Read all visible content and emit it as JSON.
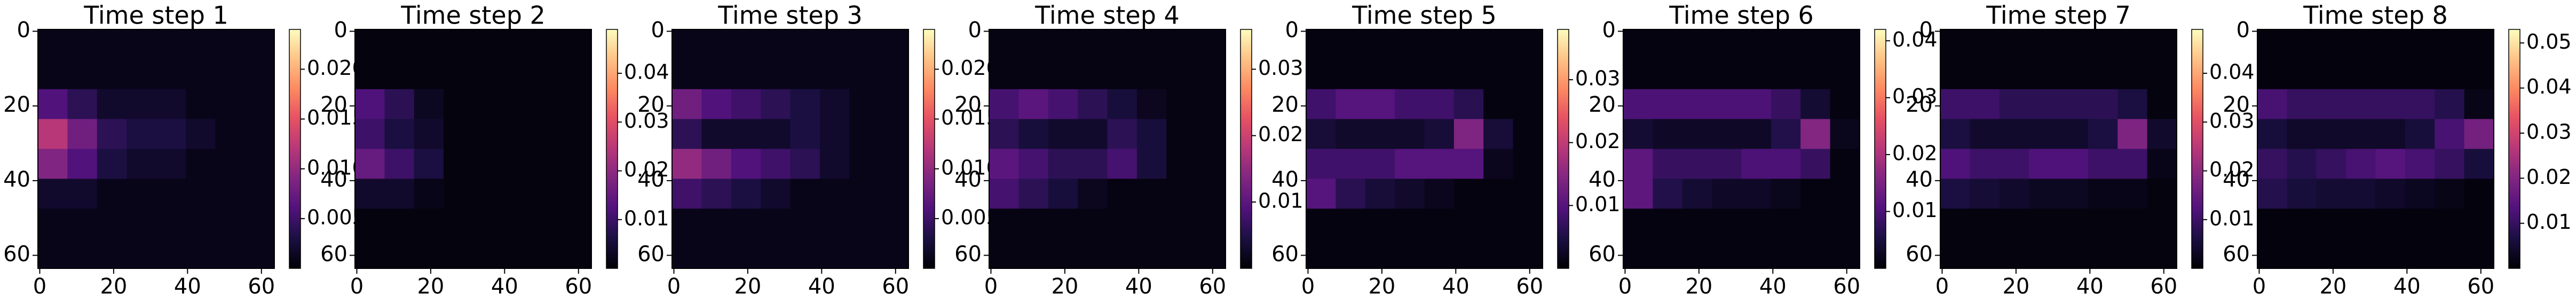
{
  "chart_data": [
    {
      "type": "heatmap",
      "title": "Time step 1",
      "colormap": "magma",
      "xlim": [
        -0.5,
        63.5
      ],
      "ylim": [
        -0.5,
        63.5
      ],
      "y_inverted": true,
      "xticks": [
        0,
        20,
        40,
        60
      ],
      "yticks": [
        0,
        20,
        40,
        60
      ],
      "clim": [
        0,
        0.024
      ],
      "cticks": [
        0.005,
        {
          "value": 0.01,
          "label": "0.010"
        },
        0.015,
        {
          "value": 0.02,
          "label": "0.020"
        }
      ],
      "values": [
        [
          0.001,
          0.001,
          0.001,
          0.001,
          0.001,
          0.001,
          0.001,
          0.001
        ],
        [
          0.001,
          0.001,
          0.001,
          0.001,
          0.001,
          0.001,
          0.001,
          0.001
        ],
        [
          0.006,
          0.004,
          0.002,
          0.002,
          0.002,
          0.001,
          0.001,
          0.001
        ],
        [
          0.012,
          0.008,
          0.004,
          0.003,
          0.003,
          0.002,
          0.001,
          0.001
        ],
        [
          0.009,
          0.006,
          0.003,
          0.002,
          0.002,
          0.001,
          0.001,
          0.001
        ],
        [
          0.002,
          0.002,
          0.001,
          0.001,
          0.001,
          0.001,
          0.001,
          0.001
        ],
        [
          0.001,
          0.001,
          0.001,
          0.001,
          0.001,
          0.001,
          0.001,
          0.001
        ],
        [
          0.001,
          0.001,
          0.001,
          0.001,
          0.001,
          0.001,
          0.001,
          0.001
        ]
      ]
    },
    {
      "type": "heatmap",
      "title": "Time step 2",
      "colormap": "magma",
      "xlim": [
        -0.5,
        63.5
      ],
      "ylim": [
        -0.5,
        63.5
      ],
      "y_inverted": true,
      "xticks": [
        0,
        20,
        40,
        60
      ],
      "yticks": [
        0,
        20,
        40,
        60
      ],
      "clim": [
        0,
        0.049
      ],
      "cticks": [
        0.01,
        0.02,
        0.03,
        0.04
      ],
      "values": [
        [
          0.001,
          0.001,
          0.001,
          0.001,
          0.001,
          0.001,
          0.001,
          0.001
        ],
        [
          0.001,
          0.001,
          0.001,
          0.001,
          0.001,
          0.001,
          0.001,
          0.001
        ],
        [
          0.012,
          0.008,
          0.003,
          0.001,
          0.001,
          0.001,
          0.001,
          0.001
        ],
        [
          0.01,
          0.006,
          0.004,
          0.001,
          0.001,
          0.001,
          0.001,
          0.001
        ],
        [
          0.015,
          0.01,
          0.006,
          0.001,
          0.001,
          0.001,
          0.001,
          0.001
        ],
        [
          0.004,
          0.004,
          0.002,
          0.001,
          0.001,
          0.001,
          0.001,
          0.001
        ],
        [
          0.001,
          0.001,
          0.001,
          0.001,
          0.001,
          0.001,
          0.001,
          0.001
        ],
        [
          0.001,
          0.001,
          0.001,
          0.001,
          0.001,
          0.001,
          0.001,
          0.001
        ]
      ]
    },
    {
      "type": "heatmap",
      "title": "Time step 3",
      "colormap": "magma",
      "xlim": [
        -0.5,
        63.5
      ],
      "ylim": [
        -0.5,
        63.5
      ],
      "y_inverted": true,
      "xticks": [
        0,
        20,
        40,
        60
      ],
      "yticks": [
        0,
        20,
        40,
        60
      ],
      "clim": [
        0,
        0.024
      ],
      "cticks": [
        0.005,
        {
          "value": 0.01,
          "label": "0.010"
        },
        0.015,
        {
          "value": 0.02,
          "label": "0.020"
        }
      ],
      "values": [
        [
          0.001,
          0.001,
          0.001,
          0.001,
          0.001,
          0.001,
          0.001,
          0.001
        ],
        [
          0.001,
          0.001,
          0.001,
          0.001,
          0.001,
          0.001,
          0.001,
          0.001
        ],
        [
          0.008,
          0.006,
          0.005,
          0.004,
          0.003,
          0.002,
          0.001,
          0.001
        ],
        [
          0.004,
          0.002,
          0.002,
          0.002,
          0.003,
          0.002,
          0.001,
          0.001
        ],
        [
          0.01,
          0.008,
          0.006,
          0.005,
          0.004,
          0.002,
          0.001,
          0.001
        ],
        [
          0.005,
          0.004,
          0.003,
          0.002,
          0.001,
          0.001,
          0.001,
          0.001
        ],
        [
          0.001,
          0.001,
          0.001,
          0.001,
          0.001,
          0.001,
          0.001,
          0.001
        ],
        [
          0.001,
          0.001,
          0.001,
          0.001,
          0.001,
          0.001,
          0.001,
          0.001
        ]
      ]
    },
    {
      "type": "heatmap",
      "title": "Time step 4",
      "colormap": "magma",
      "xlim": [
        -0.5,
        63.5
      ],
      "ylim": [
        -0.5,
        63.5
      ],
      "y_inverted": true,
      "xticks": [
        0,
        20,
        40,
        60
      ],
      "yticks": [
        0,
        20,
        40,
        60
      ],
      "clim": [
        0,
        0.036
      ],
      "cticks": [
        0.01,
        0.02,
        0.03
      ],
      "values": [
        [
          0.001,
          0.001,
          0.001,
          0.001,
          0.001,
          0.001,
          0.001,
          0.001
        ],
        [
          0.001,
          0.001,
          0.001,
          0.001,
          0.001,
          0.001,
          0.001,
          0.001
        ],
        [
          0.008,
          0.01,
          0.008,
          0.006,
          0.004,
          0.002,
          0.001,
          0.001
        ],
        [
          0.006,
          0.004,
          0.003,
          0.003,
          0.006,
          0.004,
          0.001,
          0.001
        ],
        [
          0.01,
          0.008,
          0.006,
          0.006,
          0.008,
          0.004,
          0.001,
          0.001
        ],
        [
          0.008,
          0.006,
          0.004,
          0.002,
          0.001,
          0.001,
          0.001,
          0.001
        ],
        [
          0.001,
          0.001,
          0.001,
          0.001,
          0.001,
          0.001,
          0.001,
          0.001
        ],
        [
          0.001,
          0.001,
          0.001,
          0.001,
          0.001,
          0.001,
          0.001,
          0.001
        ]
      ]
    },
    {
      "type": "heatmap",
      "title": "Time step 5",
      "colormap": "magma",
      "xlim": [
        -0.5,
        63.5
      ],
      "ylim": [
        -0.5,
        63.5
      ],
      "y_inverted": true,
      "xticks": [
        0,
        20,
        40,
        60
      ],
      "yticks": [
        0,
        20,
        40,
        60
      ],
      "clim": [
        0,
        0.038
      ],
      "cticks": [
        0.01,
        0.02,
        0.03
      ],
      "values": [
        [
          0.001,
          0.001,
          0.001,
          0.001,
          0.001,
          0.001,
          0.001,
          0.001
        ],
        [
          0.001,
          0.001,
          0.001,
          0.001,
          0.001,
          0.001,
          0.001,
          0.001
        ],
        [
          0.008,
          0.01,
          0.01,
          0.008,
          0.008,
          0.006,
          0.001,
          0.001
        ],
        [
          0.004,
          0.003,
          0.003,
          0.003,
          0.004,
          0.014,
          0.004,
          0.001
        ],
        [
          0.008,
          0.008,
          0.008,
          0.01,
          0.01,
          0.01,
          0.002,
          0.001
        ],
        [
          0.01,
          0.006,
          0.004,
          0.003,
          0.002,
          0.001,
          0.001,
          0.001
        ],
        [
          0.001,
          0.001,
          0.001,
          0.001,
          0.001,
          0.001,
          0.001,
          0.001
        ],
        [
          0.001,
          0.001,
          0.001,
          0.001,
          0.001,
          0.001,
          0.001,
          0.001
        ]
      ]
    },
    {
      "type": "heatmap",
      "title": "Time step 6",
      "colormap": "magma",
      "xlim": [
        -0.5,
        63.5
      ],
      "ylim": [
        -0.5,
        63.5
      ],
      "y_inverted": true,
      "xticks": [
        0,
        20,
        40,
        60
      ],
      "yticks": [
        0,
        20,
        40,
        60
      ],
      "clim": [
        0,
        0.042
      ],
      "cticks": [
        0.01,
        0.02,
        0.03,
        0.04
      ],
      "values": [
        [
          0.001,
          0.001,
          0.001,
          0.001,
          0.001,
          0.001,
          0.001,
          0.001
        ],
        [
          0.001,
          0.001,
          0.001,
          0.001,
          0.001,
          0.001,
          0.001,
          0.001
        ],
        [
          0.01,
          0.01,
          0.01,
          0.01,
          0.01,
          0.008,
          0.004,
          0.001
        ],
        [
          0.004,
          0.003,
          0.003,
          0.003,
          0.003,
          0.006,
          0.016,
          0.002
        ],
        [
          0.012,
          0.008,
          0.008,
          0.008,
          0.01,
          0.01,
          0.008,
          0.001
        ],
        [
          0.012,
          0.006,
          0.004,
          0.003,
          0.003,
          0.002,
          0.001,
          0.001
        ],
        [
          0.001,
          0.001,
          0.001,
          0.001,
          0.001,
          0.001,
          0.001,
          0.001
        ],
        [
          0.001,
          0.001,
          0.001,
          0.001,
          0.001,
          0.001,
          0.001,
          0.001
        ]
      ]
    },
    {
      "type": "heatmap",
      "title": "Time step 7",
      "colormap": "magma",
      "xlim": [
        -0.5,
        63.5
      ],
      "ylim": [
        -0.5,
        63.5
      ],
      "y_inverted": true,
      "xticks": [
        0,
        20,
        40,
        60
      ],
      "yticks": [
        0,
        20,
        40,
        60
      ],
      "clim": [
        0,
        0.049
      ],
      "cticks": [
        0.01,
        0.02,
        0.03,
        0.04
      ],
      "values": [
        [
          0.001,
          0.001,
          0.001,
          0.001,
          0.001,
          0.001,
          0.001,
          0.001
        ],
        [
          0.001,
          0.001,
          0.001,
          0.001,
          0.001,
          0.001,
          0.001,
          0.001
        ],
        [
          0.01,
          0.01,
          0.008,
          0.008,
          0.008,
          0.008,
          0.006,
          0.001
        ],
        [
          0.006,
          0.004,
          0.004,
          0.004,
          0.004,
          0.006,
          0.018,
          0.004
        ],
        [
          0.012,
          0.01,
          0.01,
          0.012,
          0.012,
          0.01,
          0.01,
          0.002
        ],
        [
          0.006,
          0.005,
          0.004,
          0.003,
          0.003,
          0.002,
          0.002,
          0.001
        ],
        [
          0.001,
          0.001,
          0.001,
          0.001,
          0.001,
          0.001,
          0.001,
          0.001
        ],
        [
          0.001,
          0.001,
          0.001,
          0.001,
          0.001,
          0.001,
          0.001,
          0.001
        ]
      ]
    },
    {
      "type": "heatmap",
      "title": "Time step 8",
      "colormap": "magma",
      "xlim": [
        -0.5,
        63.5
      ],
      "ylim": [
        -0.5,
        63.5
      ],
      "y_inverted": true,
      "xticks": [
        0,
        20,
        40,
        60
      ],
      "yticks": [
        0,
        20,
        40,
        60
      ],
      "clim": [
        0,
        0.053
      ],
      "cticks": [
        0.01,
        0.02,
        0.03,
        0.04,
        0.05
      ],
      "values": [
        [
          0.001,
          0.001,
          0.001,
          0.001,
          0.001,
          0.001,
          0.001,
          0.001
        ],
        [
          0.001,
          0.001,
          0.001,
          0.001,
          0.001,
          0.001,
          0.001,
          0.001
        ],
        [
          0.012,
          0.01,
          0.01,
          0.01,
          0.01,
          0.01,
          0.008,
          0.002
        ],
        [
          0.006,
          0.004,
          0.004,
          0.004,
          0.004,
          0.006,
          0.012,
          0.018
        ],
        [
          0.01,
          0.008,
          0.01,
          0.012,
          0.014,
          0.012,
          0.01,
          0.006
        ],
        [
          0.008,
          0.006,
          0.005,
          0.005,
          0.004,
          0.003,
          0.002,
          0.001
        ],
        [
          0.001,
          0.001,
          0.001,
          0.001,
          0.001,
          0.001,
          0.001,
          0.001
        ],
        [
          0.001,
          0.001,
          0.001,
          0.001,
          0.001,
          0.001,
          0.001,
          0.001
        ]
      ]
    }
  ]
}
